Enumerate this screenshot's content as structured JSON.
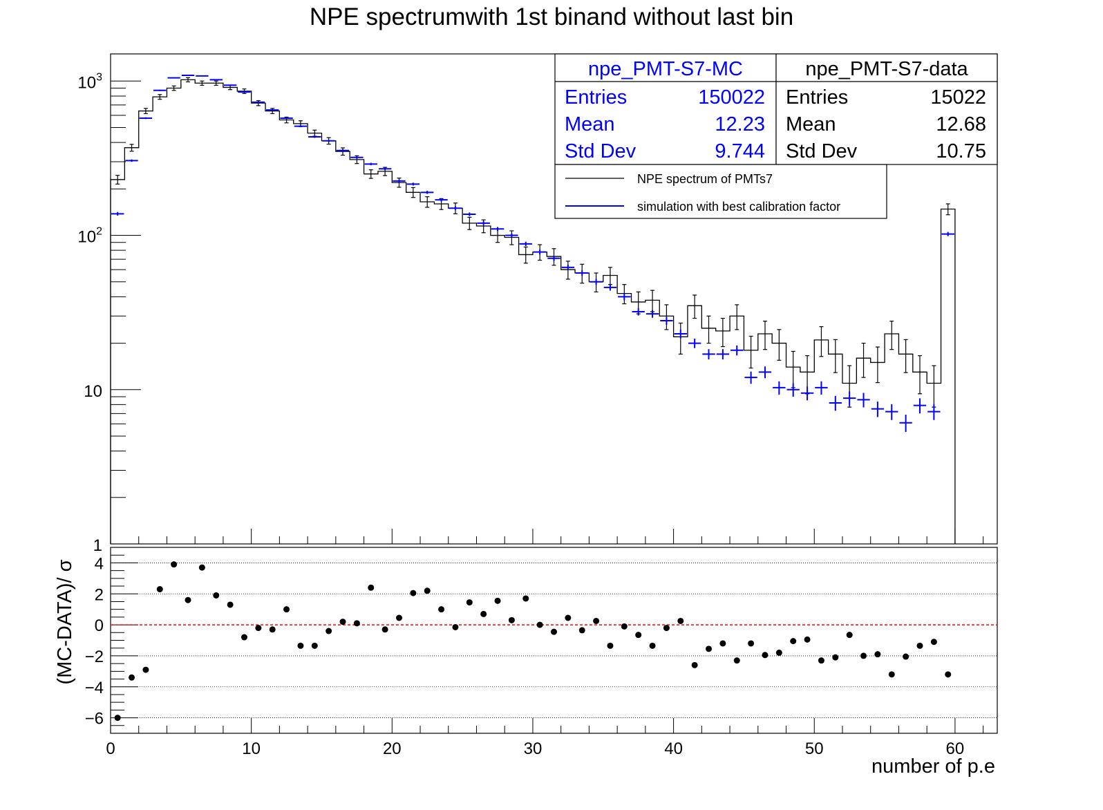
{
  "chart_data": [
    {
      "type": "histogram",
      "title": "NPE spectrumwith 1st binand without last bin",
      "xlabel": "",
      "ylabel": "",
      "xlim": [
        0,
        63
      ],
      "ylim": [
        1,
        1500
      ],
      "log_y": true,
      "y_ticks": [
        {
          "value": 1,
          "label": "1",
          "exp": ""
        },
        {
          "value": 10,
          "label": "10",
          "exp": ""
        },
        {
          "value": 100,
          "label": "10",
          "exp": "2"
        },
        {
          "value": 1000,
          "label": "10",
          "exp": "3"
        }
      ],
      "bin_width": 1,
      "x_low_edge": 0,
      "series": [
        {
          "name": "NPE spectrum of PMTs7",
          "color": "#000000",
          "style": "step with error bars",
          "values": [
            230,
            370,
            640,
            790,
            900,
            1020,
            970,
            970,
            910,
            860,
            720,
            640,
            560,
            530,
            460,
            410,
            350,
            310,
            250,
            260,
            220,
            190,
            165,
            160,
            150,
            120,
            115,
            100,
            97,
            75,
            78,
            73,
            60,
            57,
            50,
            55,
            42,
            37,
            38,
            30,
            22,
            35,
            25,
            24,
            30,
            18,
            23,
            20,
            14,
            13,
            21,
            17,
            11,
            16,
            15,
            23,
            17,
            13,
            11,
            148
          ],
          "errors": [
            15,
            19,
            25,
            28,
            30,
            32,
            31,
            31,
            30,
            29,
            27,
            25,
            24,
            23,
            21,
            20,
            19,
            18,
            16,
            16,
            15,
            14,
            13,
            13,
            12,
            11,
            11,
            10,
            10,
            9,
            9,
            9,
            8,
            8,
            7,
            7,
            6,
            6,
            6,
            5.5,
            5,
            6,
            5,
            5,
            5.5,
            4.2,
            4.8,
            4.5,
            3.7,
            3.6,
            4.6,
            4.1,
            3.3,
            4,
            3.9,
            4.8,
            4.1,
            3.6,
            3.3,
            12
          ]
        },
        {
          "name": "simulation with best calibration factor",
          "color": "#0000ff",
          "style": "markers with error bars",
          "values": [
            138,
            305,
            575,
            870,
            1050,
            1090,
            1080,
            1020,
            940,
            850,
            730,
            650,
            575,
            510,
            435,
            410,
            355,
            320,
            290,
            270,
            225,
            215,
            190,
            170,
            150,
            137,
            120,
            110,
            100,
            88,
            78,
            71,
            62,
            57,
            50,
            46,
            40,
            32,
            31,
            28,
            23,
            20,
            17,
            17,
            18,
            12,
            13,
            10.3,
            10,
            9.5,
            10.3,
            8.2,
            8.8,
            8.6,
            7.5,
            7.2,
            6.1,
            7.9,
            7.2,
            102
          ]
        }
      ],
      "stats_boxes": [
        {
          "name": "npe_PMT-S7-MC",
          "color": "#0000ff",
          "rows": [
            [
              "Entries",
              "150022"
            ],
            [
              "Mean",
              "12.23"
            ],
            [
              "Std Dev",
              "9.744"
            ]
          ]
        },
        {
          "name": "npe_PMT-S7-data",
          "color": "#000000",
          "rows": [
            [
              "Entries",
              "15022"
            ],
            [
              "Mean",
              "12.68"
            ],
            [
              "Std Dev",
              "10.75"
            ]
          ]
        }
      ],
      "legend": {
        "placement": "top-right",
        "entries": [
          {
            "label": "NPE spectrum of PMTs7",
            "color": "#000000"
          },
          {
            "label": "simulation with best calibration factor",
            "color": "#0000ff"
          }
        ]
      }
    },
    {
      "type": "scatter",
      "title": "",
      "xlabel": "number of p.e",
      "ylabel": "(MC-DATA)/ σ",
      "xlim": [
        0,
        63
      ],
      "ylim": [
        -7,
        5
      ],
      "grid_y": true,
      "y_ticks": [
        4,
        2,
        0,
        -2,
        -4,
        -6
      ],
      "y_tick_labels": [
        "4",
        "2",
        "0",
        "−2",
        "−4",
        "−6"
      ],
      "x_ticks": [
        0,
        10,
        20,
        30,
        40,
        50,
        60
      ],
      "x_tick_labels": [
        "0",
        "10",
        "20",
        "30",
        "40",
        "50",
        "60"
      ],
      "reference_line": {
        "y": 0,
        "color": "#ff0000",
        "style": "dashed"
      },
      "x": [
        0.5,
        1.5,
        2.5,
        3.5,
        4.5,
        5.5,
        6.5,
        7.5,
        8.5,
        9.5,
        10.5,
        11.5,
        12.5,
        13.5,
        14.5,
        15.5,
        16.5,
        17.5,
        18.5,
        19.5,
        20.5,
        21.5,
        22.5,
        23.5,
        24.5,
        25.5,
        26.5,
        27.5,
        28.5,
        29.5,
        30.5,
        31.5,
        32.5,
        33.5,
        34.5,
        35.5,
        36.5,
        37.5,
        38.5,
        39.5,
        40.5,
        41.5,
        42.5,
        43.5,
        44.5,
        45.5,
        46.5,
        47.5,
        48.5,
        49.5,
        50.5,
        51.5,
        52.5,
        53.5,
        54.5,
        55.5,
        56.5,
        57.5,
        58.5,
        59.5
      ],
      "y": [
        -6,
        -3.4,
        -2.9,
        2.3,
        3.9,
        1.6,
        3.7,
        1.9,
        1.3,
        -0.8,
        -0.2,
        -0.3,
        1,
        -1.35,
        -1.35,
        -0.4,
        0.2,
        0.1,
        2.4,
        -0.3,
        0.45,
        2.05,
        2.2,
        1,
        -0.15,
        1.45,
        0.7,
        1.55,
        0.3,
        1.7,
        0,
        -0.45,
        0.45,
        -0.35,
        0.25,
        -1.35,
        -0.1,
        -0.65,
        -1.35,
        -0.2,
        0.25,
        -2.6,
        -1.55,
        -1.2,
        -2.3,
        -1.2,
        -1.95,
        -1.8,
        -1.05,
        -0.95,
        -2.3,
        -2.1,
        -0.65,
        -2,
        -1.9,
        -3.2,
        -2.05,
        -1.35,
        -1.1,
        -3.2
      ],
      "marker_color": "#000000"
    }
  ]
}
